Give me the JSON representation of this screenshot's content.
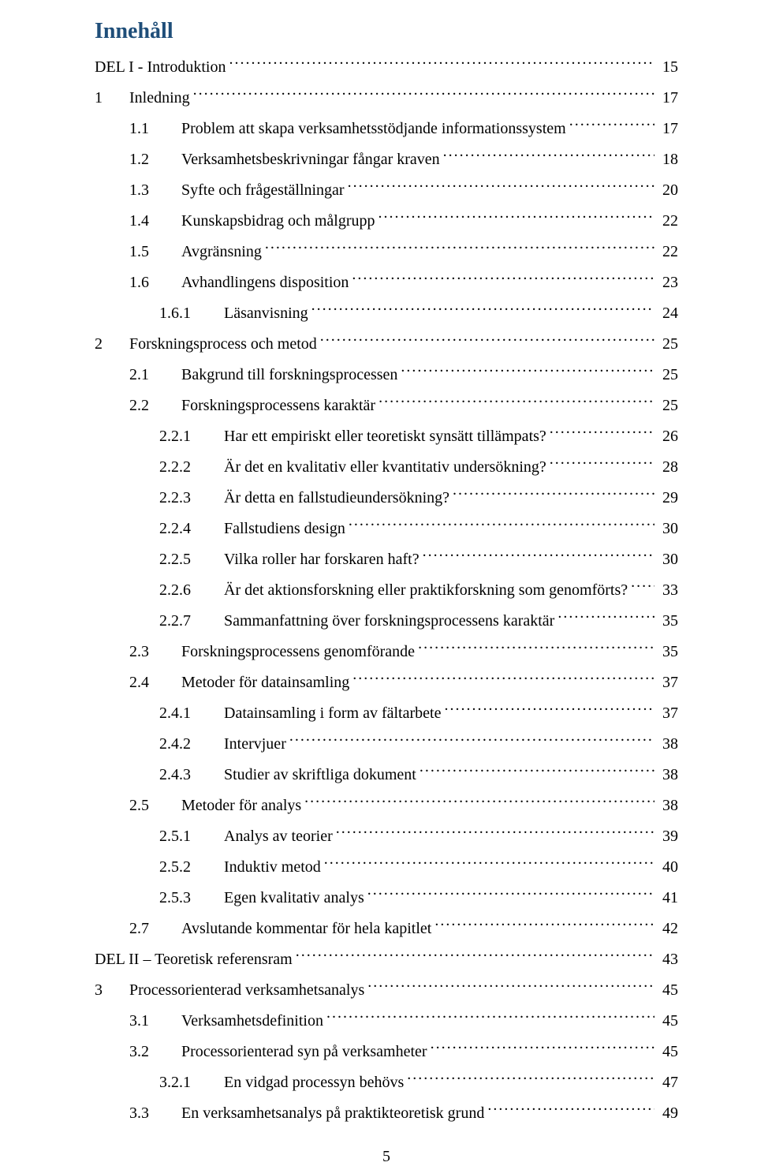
{
  "title": "Innehåll",
  "page_number": "5",
  "colors": {
    "heading": "#1f4e79",
    "text": "#000000",
    "background": "#ffffff"
  },
  "typography": {
    "body_family": "Times New Roman",
    "body_size_pt": 15,
    "heading_size_pt": 21,
    "heading_weight": "bold"
  },
  "entries": [
    {
      "num": "",
      "label": "DEL I - Introduktion",
      "page": "15",
      "level": 0
    },
    {
      "num": "1",
      "label": "Inledning",
      "page": "17",
      "level": 0
    },
    {
      "num": "1.1",
      "label": "Problem att skapa verksamhetsstödjande informationssystem",
      "page": "17",
      "level": 1
    },
    {
      "num": "1.2",
      "label": "Verksamhetsbeskrivningar fångar kraven",
      "page": "18",
      "level": 1
    },
    {
      "num": "1.3",
      "label": "Syfte och frågeställningar",
      "page": "20",
      "level": 1
    },
    {
      "num": "1.4",
      "label": "Kunskapsbidrag och målgrupp",
      "page": "22",
      "level": 1
    },
    {
      "num": "1.5",
      "label": "Avgränsning",
      "page": "22",
      "level": 1
    },
    {
      "num": "1.6",
      "label": "Avhandlingens disposition",
      "page": "23",
      "level": 1
    },
    {
      "num": "1.6.1",
      "label": "Läsanvisning",
      "page": "24",
      "level": 2
    },
    {
      "num": "2",
      "label": "Forskningsprocess och metod",
      "page": "25",
      "level": 0
    },
    {
      "num": "2.1",
      "label": "Bakgrund till forskningsprocessen",
      "page": "25",
      "level": 1
    },
    {
      "num": "2.2",
      "label": "Forskningsprocessens karaktär",
      "page": "25",
      "level": 1
    },
    {
      "num": "2.2.1",
      "label": "Har ett empiriskt eller teoretiskt synsätt tillämpats?",
      "page": "26",
      "level": 2
    },
    {
      "num": "2.2.2",
      "label": "Är det en kvalitativ eller kvantitativ undersökning?",
      "page": "28",
      "level": 2
    },
    {
      "num": "2.2.3",
      "label": "Är detta en fallstudieundersökning?",
      "page": "29",
      "level": 2
    },
    {
      "num": "2.2.4",
      "label": "Fallstudiens design",
      "page": "30",
      "level": 2
    },
    {
      "num": "2.2.5",
      "label": "Vilka roller har forskaren haft?",
      "page": "30",
      "level": 2
    },
    {
      "num": "2.2.6",
      "label": "Är det aktionsforskning eller praktikforskning som genomförts?",
      "page": "33",
      "level": 2
    },
    {
      "num": "2.2.7",
      "label": "Sammanfattning över forskningsprocessens karaktär",
      "page": "35",
      "level": 2
    },
    {
      "num": "2.3",
      "label": "Forskningsprocessens genomförande",
      "page": "35",
      "level": 1
    },
    {
      "num": "2.4",
      "label": "Metoder för datainsamling",
      "page": "37",
      "level": 1
    },
    {
      "num": "2.4.1",
      "label": "Datainsamling i form av fältarbete",
      "page": "37",
      "level": 2
    },
    {
      "num": "2.4.2",
      "label": "Intervjuer",
      "page": "38",
      "level": 2
    },
    {
      "num": "2.4.3",
      "label": "Studier av skriftliga dokument",
      "page": "38",
      "level": 2
    },
    {
      "num": "2.5",
      "label": "Metoder för analys",
      "page": "38",
      "level": 1
    },
    {
      "num": "2.5.1",
      "label": "Analys av teorier",
      "page": "39",
      "level": 2
    },
    {
      "num": "2.5.2",
      "label": "Induktiv metod",
      "page": "40",
      "level": 2
    },
    {
      "num": "2.5.3",
      "label": "Egen kvalitativ analys",
      "page": "41",
      "level": 2
    },
    {
      "num": "2.7",
      "label": "Avslutande kommentar för hela kapitlet",
      "page": "42",
      "level": 1
    },
    {
      "num": "",
      "label": "DEL II – Teoretisk referensram",
      "page": "43",
      "level": 0
    },
    {
      "num": "3",
      "label": "Processorienterad verksamhetsanalys",
      "page": "45",
      "level": 0
    },
    {
      "num": "3.1",
      "label": "Verksamhetsdefinition",
      "page": "45",
      "level": 1
    },
    {
      "num": "3.2",
      "label": "Processorienterad syn på verksamheter",
      "page": "45",
      "level": 1
    },
    {
      "num": "3.2.1",
      "label": "En vidgad processyn behövs",
      "page": "47",
      "level": 2
    },
    {
      "num": "3.3",
      "label": "En verksamhetsanalys på praktikteoretisk grund",
      "page": "49",
      "level": 1
    }
  ]
}
